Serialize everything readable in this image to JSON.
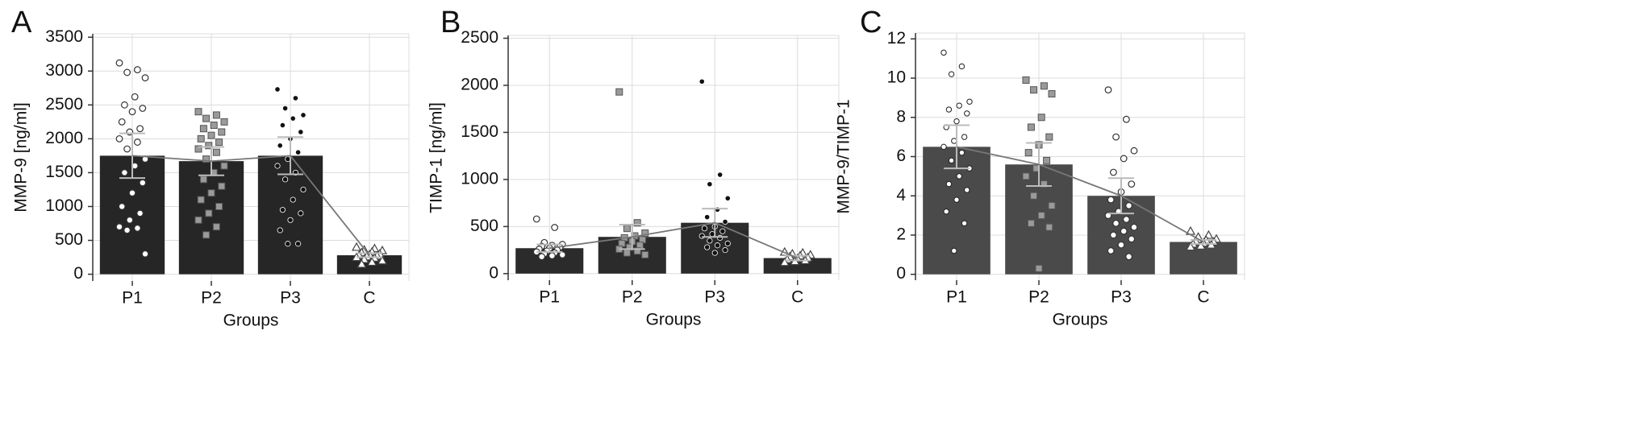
{
  "chart_data": [
    {
      "type": "bar",
      "panel": "A",
      "ylabel": "MMP-9 [ng/ml]",
      "xlabel": "Groups",
      "color": "#262626",
      "categories": [
        "P1",
        "P2",
        "P3",
        "C"
      ],
      "values": [
        1750,
        1670,
        1750,
        280
      ],
      "errors": [
        330,
        210,
        275,
        30
      ],
      "ylim": [
        -100,
        3550
      ],
      "yticks": [
        0,
        500,
        1000,
        1500,
        2000,
        2500,
        3000,
        3500
      ],
      "grid": true,
      "markers": [
        "circle-open",
        "square-grey",
        "dot",
        "triangle-open"
      ],
      "points": [
        [
          3120,
          3020,
          2980,
          2900,
          2620,
          2500,
          2450,
          2400,
          2250,
          2150,
          2100,
          2000,
          1950,
          1850,
          1700,
          1600,
          1500,
          1350,
          1200,
          1000,
          900,
          800,
          700,
          680,
          650,
          300
        ],
        [
          2400,
          2350,
          2300,
          2250,
          2200,
          2150,
          2100,
          2050,
          2000,
          1950,
          1900,
          1850,
          1800,
          1700,
          1600,
          1500,
          1400,
          1300,
          1200,
          1100,
          1000,
          900,
          800,
          700,
          580
        ],
        [
          2730,
          2600,
          2450,
          2350,
          2300,
          2200,
          2100,
          2000,
          1900,
          1800,
          1700,
          1600,
          1500,
          1400,
          1250,
          1100,
          950,
          900,
          800,
          650,
          450,
          450
        ],
        [
          400,
          380,
          360,
          350,
          330,
          320,
          300,
          290,
          280,
          270,
          260,
          250,
          240,
          220,
          200,
          180,
          150
        ]
      ]
    },
    {
      "type": "bar",
      "panel": "B",
      "ylabel": "TIMP-1 [ng/ml]",
      "xlabel": "Groups",
      "color": "#2b2b2b",
      "categories": [
        "P1",
        "P2",
        "P3",
        "C"
      ],
      "values": [
        270,
        390,
        540,
        165
      ],
      "errors": [
        40,
        130,
        150,
        25
      ],
      "ylim": [
        -70,
        2530
      ],
      "yticks": [
        0,
        500,
        1000,
        1500,
        2000,
        2500
      ],
      "grid": true,
      "markers": [
        "circle-open",
        "square-grey",
        "dot",
        "triangle-open"
      ],
      "points": [
        [
          580,
          490,
          330,
          310,
          300,
          290,
          280,
          270,
          260,
          250,
          240,
          230,
          220,
          210,
          200,
          190,
          180
        ],
        [
          1930,
          540,
          480,
          430,
          400,
          380,
          360,
          340,
          320,
          300,
          280,
          260,
          240,
          220,
          200
        ],
        [
          2040,
          1050,
          950,
          800,
          680,
          600,
          550,
          500,
          480,
          450,
          420,
          400,
          380,
          350,
          320,
          300,
          280,
          250,
          220
        ],
        [
          230,
          220,
          210,
          200,
          190,
          180,
          170,
          160,
          150,
          140,
          130,
          120
        ]
      ]
    },
    {
      "type": "bar",
      "panel": "C",
      "ylabel": "MMP-9/TIMP-1",
      "xlabel": "Groups",
      "color": "#4a4a4a",
      "categories": [
        "P1",
        "P2",
        "P3",
        "C"
      ],
      "values": [
        6.5,
        5.6,
        4.0,
        1.65
      ],
      "errors": [
        1.1,
        1.1,
        0.9,
        0.1
      ],
      "ylim": [
        -0.3,
        12.3
      ],
      "yticks": [
        0,
        2,
        4,
        6,
        8,
        10,
        12
      ],
      "grid": true,
      "markers": [
        "dot-white",
        "square-grey",
        "circle-open",
        "triangle-open"
      ],
      "points": [
        [
          11.3,
          10.6,
          10.2,
          8.8,
          8.6,
          8.4,
          8.2,
          7.8,
          7.5,
          7.0,
          6.8,
          6.5,
          6.2,
          5.8,
          5.4,
          5.0,
          4.6,
          4.3,
          3.8,
          3.2,
          2.6,
          1.2
        ],
        [
          9.9,
          9.6,
          9.4,
          9.2,
          8.0,
          7.5,
          7.0,
          6.6,
          6.2,
          5.8,
          5.4,
          5.0,
          4.6,
          4.0,
          3.5,
          3.0,
          2.6,
          2.4,
          0.3
        ],
        [
          9.4,
          7.9,
          7.0,
          6.3,
          5.9,
          5.2,
          4.6,
          4.2,
          3.8,
          3.5,
          3.2,
          3.0,
          2.8,
          2.6,
          2.4,
          2.2,
          2.0,
          1.8,
          1.5,
          1.2,
          0.9
        ],
        [
          2.2,
          2.0,
          1.9,
          1.8,
          1.75,
          1.7,
          1.65,
          1.6,
          1.55,
          1.5,
          1.45,
          1.4
        ]
      ]
    }
  ]
}
